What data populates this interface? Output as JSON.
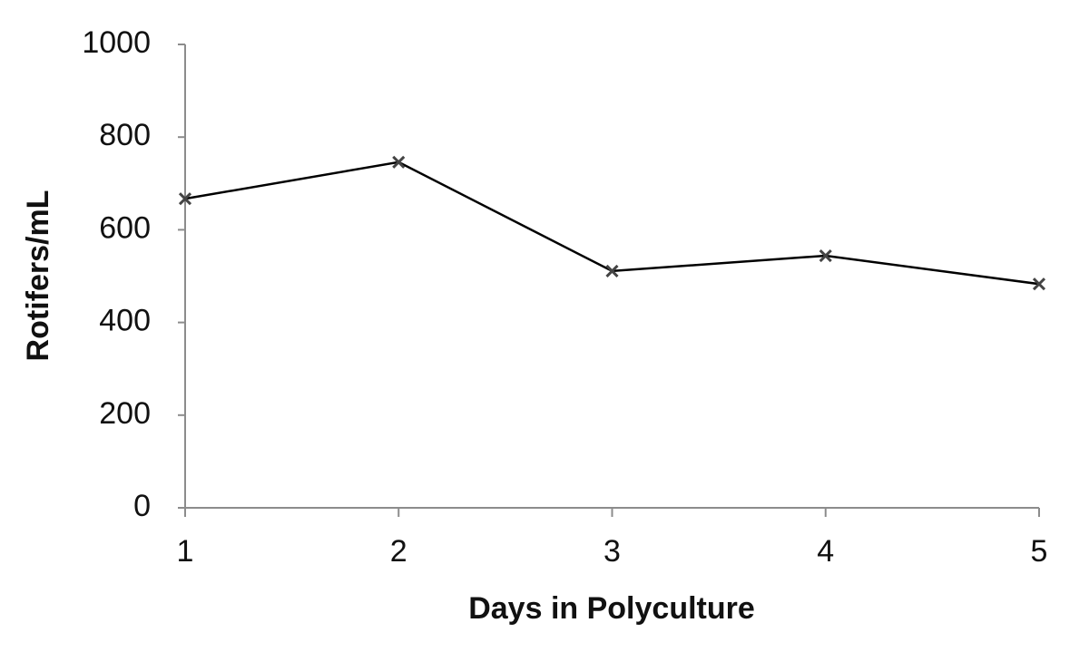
{
  "chart_data": {
    "type": "line",
    "x_label": "Days in Polyculture",
    "y_label": "Rotifers/mL",
    "x": [
      1,
      2,
      3,
      4,
      5
    ],
    "series": [
      {
        "color": "#000000",
        "values": [
          667,
          746,
          511,
          544,
          483
        ]
      }
    ],
    "xlim": [
      1,
      5
    ],
    "xticks": [
      1,
      2,
      3,
      4,
      5
    ],
    "ylim": [
      0,
      1000
    ],
    "yticks": [
      0,
      200,
      400,
      600,
      800,
      1000
    ],
    "grid": false
  }
}
